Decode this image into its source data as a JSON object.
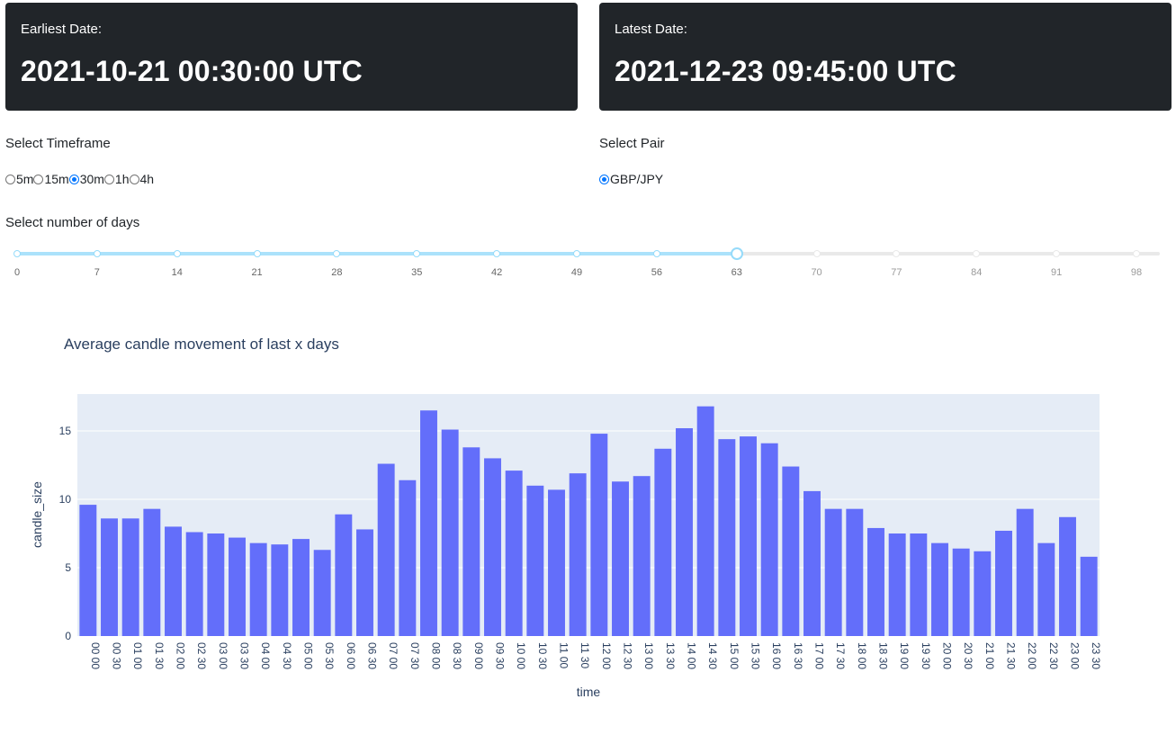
{
  "cards": {
    "earliest": {
      "label": "Earliest Date:",
      "value": "2021-10-21 00:30:00 UTC"
    },
    "latest": {
      "label": "Latest Date:",
      "value": "2021-12-23 09:45:00 UTC"
    }
  },
  "timeframe": {
    "label": "Select Timeframe",
    "options": [
      "5m",
      "15m",
      "30m",
      "1h",
      "4h"
    ],
    "selected": "30m"
  },
  "pair": {
    "label": "Select Pair",
    "options": [
      "GBP/JPY"
    ],
    "selected": "GBP/JPY"
  },
  "days": {
    "label": "Select number of days",
    "min": 0,
    "max": 98,
    "value": 63,
    "marks": [
      0,
      7,
      14,
      21,
      28,
      35,
      42,
      49,
      56,
      63,
      70,
      77,
      84,
      91,
      98
    ],
    "colors": {
      "track": "#abe2fb",
      "rail": "#e9e9e9",
      "handle": "#96dbfa"
    }
  },
  "chart_data": {
    "type": "bar",
    "title": "Average candle movement of last x days",
    "xlabel": "time",
    "ylabel": "candle_size",
    "ylim": [
      0,
      17.7
    ],
    "yticks": [
      0,
      5,
      10,
      15
    ],
    "grid": true,
    "bar_color": "#636efa",
    "plot_bg": "#e5ecf6",
    "categories": [
      "00 00",
      "00 30",
      "01 00",
      "01 30",
      "02 00",
      "02 30",
      "03 00",
      "03 30",
      "04 00",
      "04 30",
      "05 00",
      "05 30",
      "06 00",
      "06 30",
      "07 00",
      "07 30",
      "08 00",
      "08 30",
      "09 00",
      "09 30",
      "10 00",
      "10 30",
      "11 00",
      "11 30",
      "12 00",
      "12 30",
      "13 00",
      "13 30",
      "14 00",
      "14 30",
      "15 00",
      "15 30",
      "16 00",
      "16 30",
      "17 00",
      "17 30",
      "18 00",
      "18 30",
      "19 00",
      "19 30",
      "20 00",
      "20 30",
      "21 00",
      "21 30",
      "22 00",
      "22 30",
      "23 00",
      "23 30"
    ],
    "values": [
      9.6,
      8.6,
      8.6,
      9.3,
      8.0,
      7.6,
      7.5,
      7.2,
      6.8,
      6.7,
      7.1,
      6.3,
      8.9,
      7.8,
      12.6,
      11.4,
      16.5,
      15.1,
      13.8,
      13.0,
      12.1,
      11.0,
      10.7,
      11.9,
      14.8,
      11.3,
      11.7,
      13.7,
      15.2,
      16.8,
      14.4,
      14.6,
      14.1,
      12.4,
      10.6,
      9.3,
      9.3,
      7.9,
      7.5,
      7.5,
      6.8,
      6.4,
      6.2,
      7.7,
      9.3,
      6.8,
      8.7,
      5.8
    ]
  }
}
